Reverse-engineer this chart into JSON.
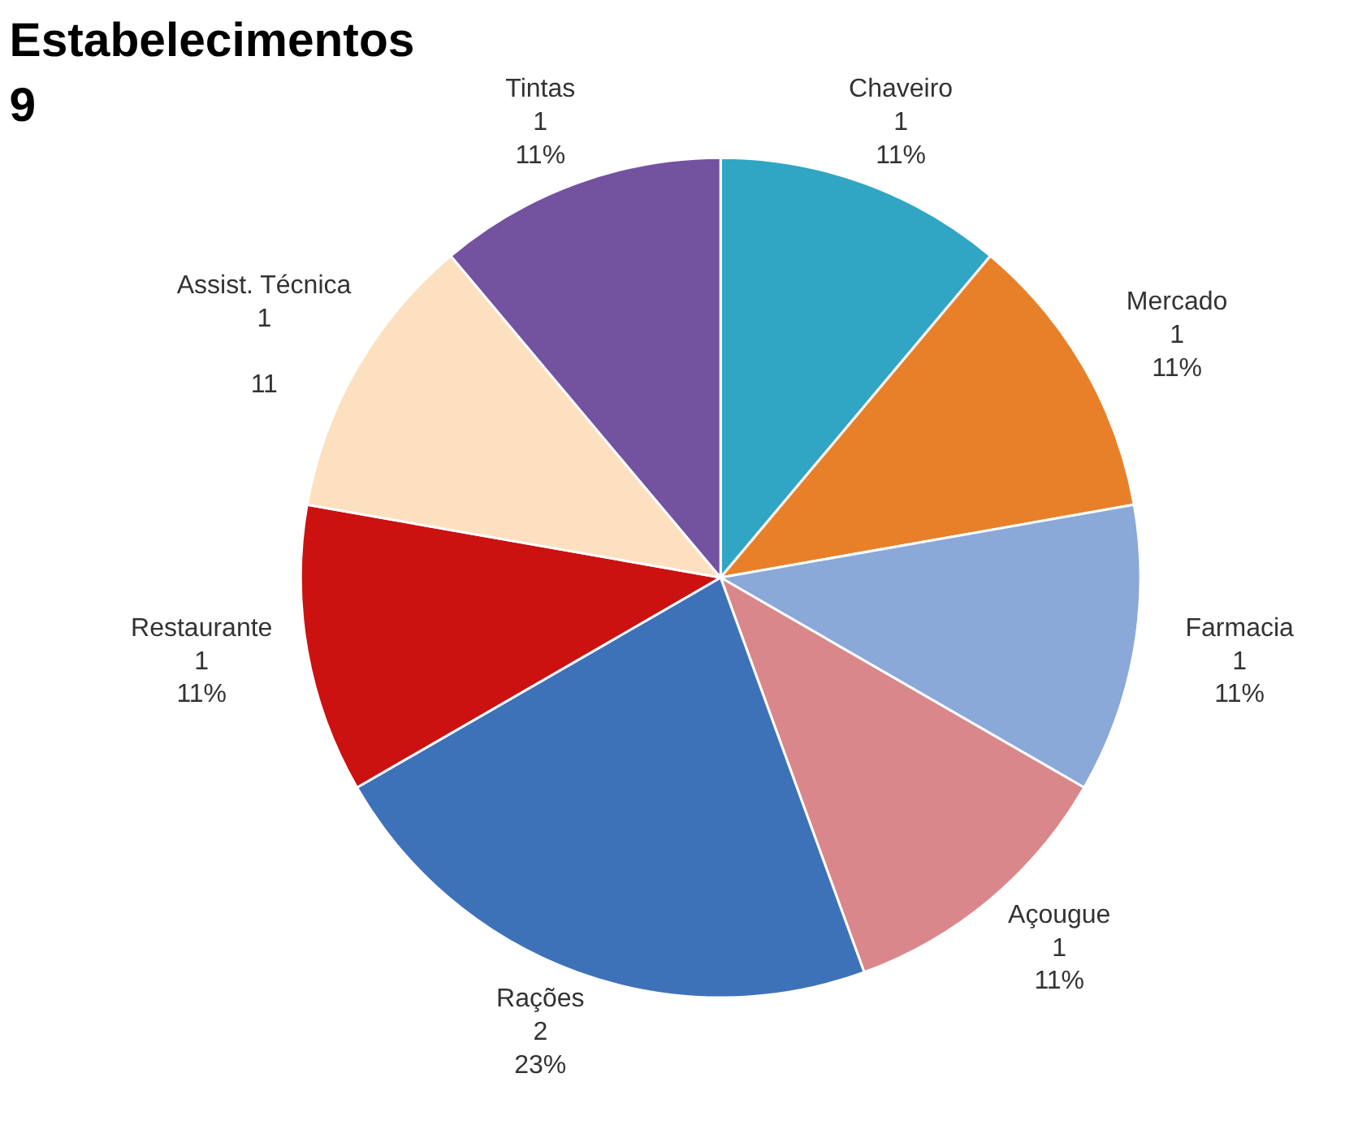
{
  "chart_data": {
    "type": "pie",
    "title": "Estabelecimentos",
    "subtitle": "9",
    "categories": [
      "Chaveiro",
      "Mercado",
      "Farmacia",
      "Açougue",
      "Rações",
      "Restaurante",
      "Assist. Técnica",
      "Tintas"
    ],
    "values": [
      1,
      1,
      1,
      1,
      2,
      1,
      1,
      1
    ],
    "value_labels": [
      "1\n11%",
      "1\n11%",
      "1\n11%",
      "1\n11%",
      "2\n23%",
      "1\n11%",
      "1\n\n11",
      "1\n11%"
    ],
    "colors": [
      "#31a5c4",
      "#e8802a",
      "#8aa8d8",
      "#d9878a",
      "#3e72b8",
      "#cc1111",
      "#fde0c0",
      "#7352a0"
    ]
  }
}
